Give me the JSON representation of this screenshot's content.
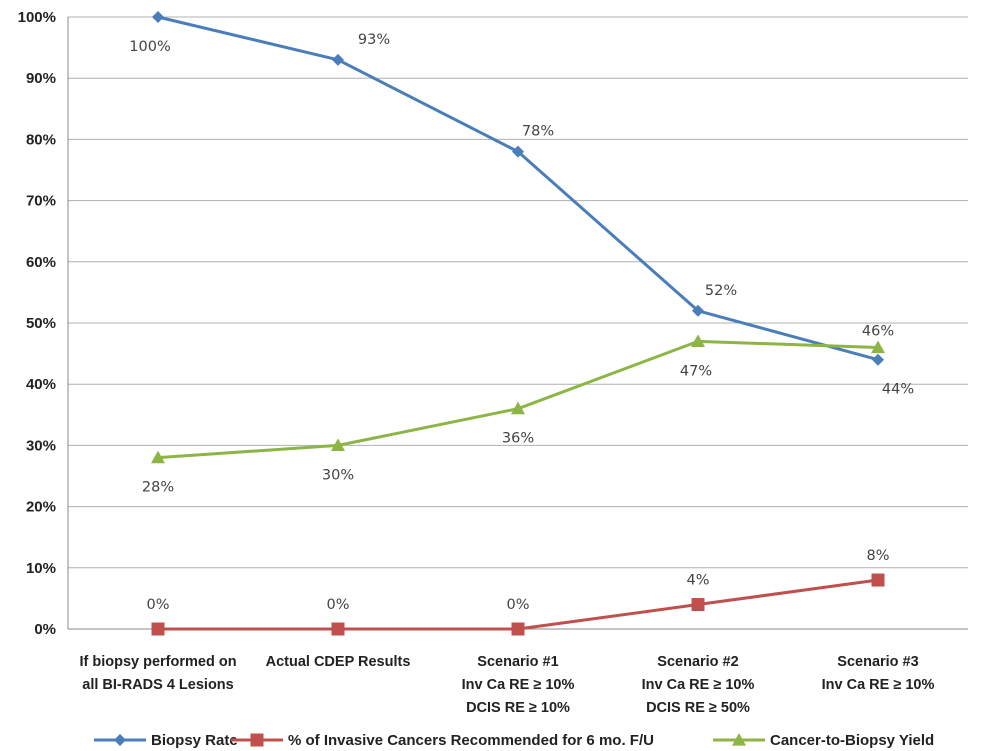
{
  "chart_data": {
    "type": "line",
    "categories": [
      [
        "If biopsy performed on",
        "all BI-RADS 4 Lesions"
      ],
      [
        "Actual CDEP Results"
      ],
      [
        "Scenario #1",
        "Inv Ca RE ≥ 10%",
        "DCIS RE ≥ 10%"
      ],
      [
        "Scenario #2",
        "Inv Ca RE ≥ 10%",
        "DCIS RE ≥ 50%"
      ],
      [
        "Scenario #3",
        "Inv Ca RE ≥ 10%"
      ]
    ],
    "yticks": [
      "0%",
      "10%",
      "20%",
      "30%",
      "40%",
      "50%",
      "60%",
      "70%",
      "80%",
      "90%",
      "100%"
    ],
    "ylim": [
      0,
      100
    ],
    "grid": true,
    "legend_position": "bottom",
    "series": [
      {
        "name": "Biopsy Rate",
        "color": "#4a7ebb",
        "marker": "diamond",
        "values": [
          100,
          93,
          78,
          52,
          44
        ],
        "labels": [
          "100%",
          "93%",
          "78%",
          "52%",
          "44%"
        ],
        "label_pos": [
          "below",
          "above",
          "above",
          "above",
          "below"
        ]
      },
      {
        "name": "% of Invasive Cancers Recommended for 6 mo. F/U",
        "color": "#c0504d",
        "marker": "square",
        "values": [
          0,
          0,
          0,
          4,
          8
        ],
        "labels": [
          "0%",
          "0%",
          "0%",
          "4%",
          "8%"
        ],
        "label_pos": [
          "above",
          "above",
          "above",
          "above",
          "above"
        ]
      },
      {
        "name": "Cancer-to-Biopsy Yield",
        "color": "#8db545",
        "marker": "triangle",
        "values": [
          28,
          30,
          36,
          47,
          46
        ],
        "labels": [
          "28%",
          "30%",
          "36%",
          "47%",
          "46%"
        ],
        "label_pos": [
          "below",
          "below",
          "below",
          "below",
          "above"
        ]
      }
    ]
  }
}
